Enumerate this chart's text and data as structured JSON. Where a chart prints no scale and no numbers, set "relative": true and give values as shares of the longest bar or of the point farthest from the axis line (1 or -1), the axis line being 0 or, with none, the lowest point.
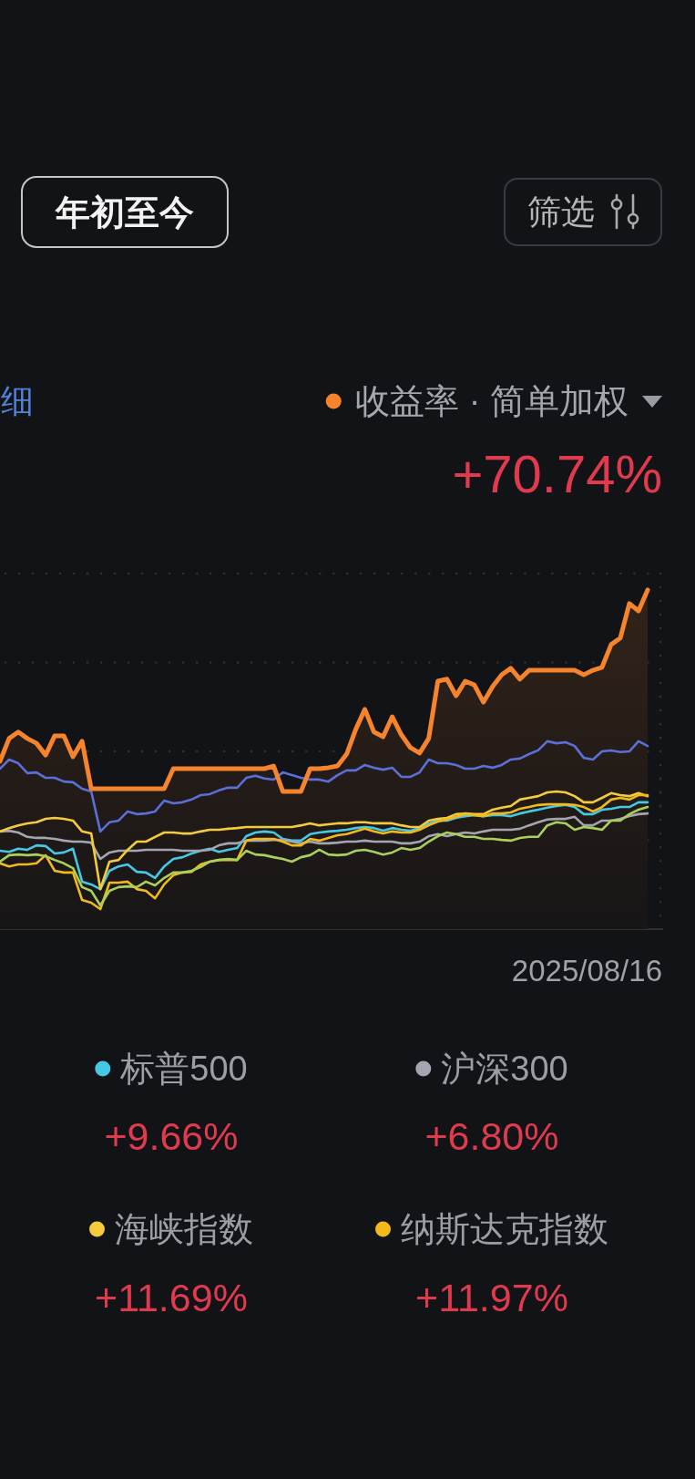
{
  "chart_data": {
    "type": "line",
    "title": "年初至今",
    "xlabel": "2025/08/16",
    "relative": true,
    "grid": "y",
    "legend": "bottom",
    "categories": [
      null,
      null,
      null,
      null,
      null,
      null,
      null,
      null,
      null,
      null,
      null,
      null,
      null,
      null,
      null,
      null,
      null,
      null,
      null,
      null,
      null,
      null,
      null,
      null,
      null,
      null,
      null,
      null,
      null,
      null,
      null,
      null,
      null,
      null,
      null,
      null,
      null,
      null,
      null,
      null,
      null,
      null,
      null,
      null,
      null,
      null,
      null,
      null,
      null,
      null,
      null,
      null,
      null,
      null,
      null,
      null,
      null,
      null,
      null,
      null,
      null,
      null,
      null,
      null,
      null,
      null,
      null,
      null,
      null,
      null,
      null,
      null
    ],
    "series": [
      {
        "name": "收益率 · 简单加权",
        "type": "area",
        "color": "#f5842c",
        "values": [
          0.495,
          0.562,
          0.581,
          0.562,
          0.548,
          0.513,
          0.57,
          0.57,
          0.508,
          0.554,
          0.414,
          0.414,
          0.414,
          0.414,
          0.414,
          0.414,
          0.414,
          0.414,
          0.414,
          0.473,
          0.473,
          0.473,
          0.473,
          0.473,
          0.473,
          0.473,
          0.473,
          0.473,
          0.473,
          0.473,
          0.481,
          0.406,
          0.406,
          0.406,
          0.473,
          0.473,
          0.476,
          0.481,
          0.516,
          0.589,
          0.648,
          0.581,
          0.567,
          0.626,
          0.573,
          0.535,
          0.519,
          0.562,
          0.731,
          0.737,
          0.688,
          0.731,
          0.72,
          0.669,
          0.715,
          0.75,
          0.769,
          0.737,
          0.763,
          0.763,
          0.763,
          0.763,
          0.763,
          0.763,
          0.75,
          0.763,
          0.772,
          0.839,
          0.858,
          0.96,
          0.938,
          1
        ]
      },
      {
        "color": "#5b6fd9",
        "values": [
          0.473,
          0.5,
          0.489,
          0.46,
          0.462,
          0.446,
          0.446,
          0.435,
          0.433,
          0.414,
          0.406,
          0.288,
          0.315,
          0.32,
          0.347,
          0.339,
          0.341,
          0.347,
          0.379,
          0.371,
          0.374,
          0.382,
          0.395,
          0.398,
          0.409,
          0.417,
          0.417,
          0.446,
          0.452,
          0.444,
          0.441,
          0.462,
          0.454,
          0.446,
          0.441,
          0.441,
          0.435,
          0.454,
          0.468,
          0.468,
          0.484,
          0.476,
          0.47,
          0.476,
          0.449,
          0.449,
          0.462,
          0.5,
          0.489,
          0.489,
          0.484,
          0.473,
          0.473,
          0.481,
          0.476,
          0.484,
          0.5,
          0.503,
          0.516,
          0.527,
          0.554,
          0.548,
          0.551,
          0.54,
          0.505,
          0.5,
          0.524,
          0.527,
          0.522,
          0.524,
          0.554,
          0.54
        ]
      },
      {
        "name": "标普500",
        "color": "#45c8e3",
        "values": [
          0.231,
          0.228,
          0.237,
          0.234,
          0.247,
          0.245,
          0.223,
          0.226,
          0.237,
          0.14,
          0.132,
          0.118,
          0.172,
          0.185,
          0.191,
          0.169,
          0.167,
          0.151,
          0.185,
          0.207,
          0.212,
          0.223,
          0.231,
          0.237,
          0.228,
          0.234,
          0.239,
          0.274,
          0.285,
          0.288,
          0.285,
          0.266,
          0.261,
          0.261,
          0.28,
          0.285,
          0.288,
          0.29,
          0.293,
          0.298,
          0.301,
          0.298,
          0.29,
          0.298,
          0.293,
          0.29,
          0.298,
          0.312,
          0.32,
          0.32,
          0.328,
          0.333,
          0.336,
          0.333,
          0.336,
          0.336,
          0.333,
          0.341,
          0.347,
          0.352,
          0.358,
          0.363,
          0.366,
          0.36,
          0.339,
          0.339,
          0.352,
          0.355,
          0.36,
          0.36,
          0.374,
          0.374
        ]
      },
      {
        "name": "沪深300",
        "color": "#a3a6b0",
        "values": [
          0.288,
          0.29,
          0.285,
          0.272,
          0.269,
          0.269,
          0.266,
          0.261,
          0.258,
          0.258,
          0.255,
          0.207,
          0.226,
          0.231,
          0.231,
          0.231,
          0.234,
          0.234,
          0.234,
          0.234,
          0.231,
          0.231,
          0.231,
          0.234,
          0.247,
          0.253,
          0.253,
          0.261,
          0.261,
          0.261,
          0.263,
          0.263,
          0.258,
          0.253,
          0.258,
          0.253,
          0.253,
          0.255,
          0.258,
          0.258,
          0.261,
          0.258,
          0.258,
          0.258,
          0.253,
          0.253,
          0.258,
          0.274,
          0.28,
          0.274,
          0.28,
          0.285,
          0.282,
          0.288,
          0.293,
          0.293,
          0.293,
          0.296,
          0.306,
          0.315,
          0.323,
          0.325,
          0.325,
          0.331,
          0.306,
          0.306,
          0.32,
          0.32,
          0.325,
          0.333,
          0.339,
          0.341
        ]
      },
      {
        "name": "海峡指数",
        "color": "#f4cb3c",
        "values": [
          0.288,
          0.298,
          0.306,
          0.312,
          0.315,
          0.325,
          0.328,
          0.325,
          0.32,
          0.288,
          0.282,
          0.118,
          0.199,
          0.204,
          0.234,
          0.258,
          0.258,
          0.272,
          0.285,
          0.285,
          0.282,
          0.282,
          0.288,
          0.293,
          0.293,
          0.296,
          0.298,
          0.301,
          0.301,
          0.301,
          0.301,
          0.301,
          0.301,
          0.306,
          0.312,
          0.306,
          0.309,
          0.312,
          0.312,
          0.315,
          0.315,
          0.312,
          0.312,
          0.312,
          0.306,
          0.301,
          0.301,
          0.32,
          0.325,
          0.328,
          0.339,
          0.341,
          0.339,
          0.339,
          0.352,
          0.358,
          0.363,
          0.382,
          0.387,
          0.392,
          0.403,
          0.406,
          0.403,
          0.392,
          0.374,
          0.374,
          0.387,
          0.401,
          0.395,
          0.392,
          0.401,
          0.392
        ]
      },
      {
        "name": "纳斯达克指数",
        "color": "#f2b91b",
        "values": [
          0.194,
          0.185,
          0.191,
          0.191,
          0.194,
          0.218,
          0.172,
          0.167,
          0.167,
          0.086,
          0.078,
          0.059,
          0.137,
          0.137,
          0.14,
          0.118,
          0.113,
          0.091,
          0.132,
          0.159,
          0.167,
          0.169,
          0.191,
          0.199,
          0.204,
          0.204,
          0.204,
          0.261,
          0.266,
          0.266,
          0.266,
          0.258,
          0.247,
          0.247,
          0.266,
          0.261,
          0.269,
          0.277,
          0.28,
          0.288,
          0.296,
          0.288,
          0.282,
          0.288,
          0.285,
          0.285,
          0.293,
          0.306,
          0.317,
          0.323,
          0.331,
          0.339,
          0.336,
          0.333,
          0.341,
          0.341,
          0.344,
          0.355,
          0.36,
          0.366,
          0.368,
          0.368,
          0.368,
          0.366,
          0.36,
          0.347,
          0.36,
          0.382,
          0.387,
          0.382,
          0.395,
          0.395
        ]
      },
      {
        "color": "#a8d05a",
        "values": [
          0.199,
          0.218,
          0.22,
          0.218,
          0.22,
          0.215,
          0.204,
          0.194,
          0.18,
          0.124,
          0.113,
          0.07,
          0.113,
          0.124,
          0.126,
          0.124,
          0.14,
          0.129,
          0.151,
          0.167,
          0.167,
          0.172,
          0.183,
          0.199,
          0.204,
          0.207,
          0.204,
          0.231,
          0.22,
          0.218,
          0.212,
          0.207,
          0.199,
          0.212,
          0.218,
          0.234,
          0.22,
          0.218,
          0.22,
          0.231,
          0.234,
          0.228,
          0.22,
          0.226,
          0.239,
          0.234,
          0.239,
          0.258,
          0.274,
          0.285,
          0.28,
          0.272,
          0.272,
          0.266,
          0.266,
          0.263,
          0.261,
          0.269,
          0.272,
          0.272,
          0.306,
          0.315,
          0.312,
          0.293,
          0.301,
          0.298,
          0.293,
          0.32,
          0.32,
          0.339,
          0.352,
          0.36
        ]
      }
    ],
    "annotations": [
      "+70.74%",
      "+9.66%",
      "+6.80%",
      "+11.69%",
      "+11.97%",
      "筛选",
      "细"
    ]
  }
}
